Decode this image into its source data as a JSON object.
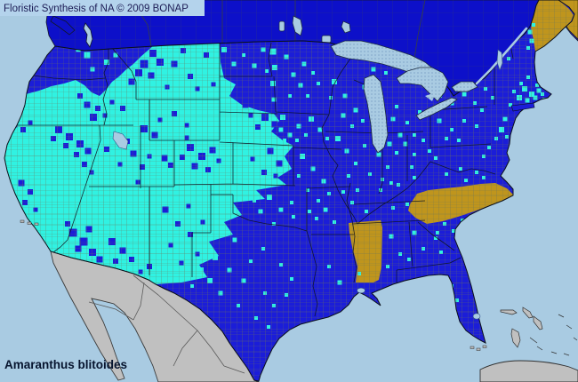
{
  "header": {
    "title": "Floristic Synthesis of NA © 2009 BONAP"
  },
  "footer": {
    "species": "Amaranthus blitoides"
  },
  "colors": {
    "ocean": "#a9cbe2",
    "water": "#a9cbe2",
    "title_bar_bg": "#b4d3ec",
    "title_text": "#1c1c55",
    "species_text": "#06142e",
    "canada_blue": "#0d10c9",
    "us_state_blue": "#1b1dd8",
    "county_cyan": "#30f2e2",
    "gold_absent": "#bf951d",
    "foreign_gray": "#c0c0c0",
    "county_line": "#6d7557",
    "state_line": "#101420",
    "outline": "#0a0f1a",
    "lake_dot": "#6f93bb"
  },
  "map": {
    "county_squares_cyan": [
      [
        98,
        62,
        7
      ],
      [
        120,
        70,
        6
      ],
      [
        104,
        78,
        5
      ],
      [
        88,
        56,
        5
      ],
      [
        130,
        62,
        5
      ],
      [
        128,
        96,
        5
      ],
      [
        252,
        56,
        6
      ],
      [
        263,
        72,
        5
      ],
      [
        286,
        74,
        5
      ],
      [
        296,
        56,
        5
      ],
      [
        274,
        62,
        4
      ],
      [
        300,
        80,
        4
      ],
      [
        307,
        58,
        7
      ],
      [
        309,
        76,
        6
      ],
      [
        307,
        94,
        6
      ],
      [
        308,
        112,
        5
      ],
      [
        322,
        64,
        5
      ],
      [
        330,
        84,
        5
      ],
      [
        342,
        72,
        5
      ],
      [
        338,
        96,
        5
      ],
      [
        352,
        82,
        4
      ],
      [
        326,
        108,
        4
      ],
      [
        346,
        108,
        4
      ],
      [
        358,
        94,
        4
      ],
      [
        376,
        92,
        6
      ],
      [
        388,
        108,
        5
      ],
      [
        400,
        124,
        5
      ],
      [
        410,
        98,
        5
      ],
      [
        386,
        130,
        5
      ],
      [
        396,
        142,
        4
      ],
      [
        372,
        110,
        4
      ],
      [
        408,
        136,
        4
      ],
      [
        420,
        78,
        5
      ],
      [
        434,
        82,
        4
      ],
      [
        428,
        118,
        5
      ],
      [
        442,
        134,
        5
      ],
      [
        450,
        152,
        5
      ],
      [
        438,
        162,
        5
      ],
      [
        458,
        138,
        4
      ],
      [
        466,
        152,
        4
      ],
      [
        472,
        126,
        4
      ],
      [
        446,
        120,
        4
      ],
      [
        318,
        132,
        6
      ],
      [
        316,
        146,
        5
      ],
      [
        326,
        152,
        5
      ],
      [
        334,
        158,
        4
      ],
      [
        320,
        158,
        4
      ],
      [
        350,
        134,
        6
      ],
      [
        360,
        146,
        5
      ],
      [
        368,
        156,
        4
      ],
      [
        344,
        152,
        4
      ],
      [
        336,
        142,
        5
      ],
      [
        340,
        176,
        6
      ],
      [
        352,
        190,
        5
      ],
      [
        364,
        204,
        5
      ],
      [
        346,
        214,
        4
      ],
      [
        358,
        226,
        4
      ],
      [
        336,
        198,
        4
      ],
      [
        370,
        218,
        4
      ],
      [
        348,
        238,
        4
      ],
      [
        380,
        156,
        6
      ],
      [
        390,
        170,
        5
      ],
      [
        400,
        184,
        4
      ],
      [
        410,
        164,
        4
      ],
      [
        392,
        198,
        4
      ],
      [
        402,
        214,
        4
      ],
      [
        386,
        216,
        4
      ],
      [
        416,
        196,
        4
      ],
      [
        396,
        228,
        4
      ],
      [
        426,
        174,
        5
      ],
      [
        436,
        188,
        4
      ],
      [
        446,
        172,
        4
      ],
      [
        430,
        202,
        4
      ],
      [
        440,
        206,
        4
      ],
      [
        456,
        162,
        5
      ],
      [
        466,
        174,
        4
      ],
      [
        476,
        158,
        4
      ],
      [
        463,
        188,
        4
      ],
      [
        483,
        170,
        4
      ],
      [
        428,
        214,
        4
      ],
      [
        448,
        208,
        4
      ],
      [
        466,
        200,
        4
      ],
      [
        412,
        238,
        4
      ],
      [
        442,
        234,
        4
      ],
      [
        458,
        230,
        4
      ],
      [
        366,
        236,
        5
      ],
      [
        376,
        250,
        4
      ],
      [
        356,
        246,
        4
      ],
      [
        382,
        318,
        5
      ],
      [
        404,
        308,
        4
      ],
      [
        370,
        300,
        4
      ],
      [
        303,
        222,
        6
      ],
      [
        316,
        236,
        5
      ],
      [
        293,
        238,
        5
      ],
      [
        308,
        252,
        4
      ],
      [
        328,
        228,
        4
      ],
      [
        286,
        226,
        4
      ],
      [
        330,
        244,
        4
      ],
      [
        250,
        256,
        6
      ],
      [
        264,
        270,
        5
      ],
      [
        242,
        290,
        6
      ],
      [
        258,
        304,
        5
      ],
      [
        274,
        316,
        5
      ],
      [
        236,
        316,
        6
      ],
      [
        226,
        304,
        6
      ],
      [
        248,
        330,
        5
      ],
      [
        282,
        294,
        4
      ],
      [
        296,
        280,
        4
      ],
      [
        268,
        344,
        4
      ],
      [
        298,
        330,
        4
      ],
      [
        316,
        298,
        4
      ],
      [
        328,
        314,
        4
      ],
      [
        288,
        358,
        4
      ],
      [
        308,
        344,
        4
      ],
      [
        198,
        314,
        5
      ],
      [
        208,
        300,
        5
      ],
      [
        188,
        308,
        4
      ],
      [
        216,
        322,
        4
      ],
      [
        302,
        368,
        4
      ],
      [
        322,
        332,
        4
      ],
      [
        440,
        266,
        5
      ],
      [
        450,
        286,
        4
      ],
      [
        436,
        300,
        4
      ],
      [
        466,
        262,
        5
      ],
      [
        476,
        280,
        4
      ],
      [
        490,
        268,
        4
      ],
      [
        460,
        292,
        4
      ],
      [
        496,
        284,
        4
      ],
      [
        514,
        338,
        4
      ],
      [
        508,
        322,
        4
      ],
      [
        500,
        252,
        4
      ],
      [
        510,
        260,
        4
      ],
      [
        520,
        248,
        4
      ],
      [
        492,
        262,
        4
      ],
      [
        502,
        196,
        4
      ],
      [
        518,
        190,
        4
      ],
      [
        536,
        194,
        4
      ],
      [
        524,
        203,
        4
      ],
      [
        544,
        200,
        4
      ],
      [
        490,
        178,
        4
      ],
      [
        550,
        166,
        4
      ],
      [
        558,
        156,
        4
      ],
      [
        544,
        176,
        4
      ],
      [
        494,
        136,
        5
      ],
      [
        508,
        146,
        4
      ],
      [
        522,
        136,
        4
      ],
      [
        536,
        142,
        4
      ],
      [
        502,
        156,
        4
      ],
      [
        516,
        158,
        4
      ],
      [
        508,
        116,
        5
      ],
      [
        522,
        106,
        5
      ],
      [
        534,
        116,
        4
      ],
      [
        546,
        100,
        4
      ],
      [
        554,
        110,
        4
      ],
      [
        542,
        124,
        4
      ],
      [
        530,
        92,
        4
      ],
      [
        495,
        108,
        4
      ],
      [
        568,
        134,
        5
      ],
      [
        564,
        146,
        6
      ],
      [
        570,
        154,
        4
      ],
      [
        590,
        100,
        6
      ],
      [
        598,
        106,
        6
      ],
      [
        606,
        102,
        5
      ],
      [
        584,
        110,
        6
      ],
      [
        593,
        113,
        5
      ],
      [
        602,
        110,
        5
      ],
      [
        610,
        106,
        4
      ],
      [
        586,
        94,
        4
      ],
      [
        594,
        87,
        4
      ],
      [
        578,
        103,
        4
      ],
      [
        574,
        118,
        4
      ],
      [
        580,
        121,
        4
      ],
      [
        604,
        96,
        4
      ],
      [
        612,
        112,
        4
      ],
      [
        596,
        36,
        5
      ],
      [
        598,
        46,
        5
      ],
      [
        594,
        54,
        4
      ],
      [
        600,
        28,
        4
      ],
      [
        572,
        66,
        4
      ],
      [
        578,
        121,
        3
      ],
      [
        586,
        119,
        3
      ]
    ],
    "county_squares_blue": [
      [
        150,
        62,
        10
      ],
      [
        162,
        72,
        9
      ],
      [
        172,
        60,
        8
      ],
      [
        156,
        82,
        8
      ],
      [
        170,
        85,
        7
      ],
      [
        180,
        70,
        8
      ],
      [
        148,
        92,
        7
      ],
      [
        196,
        72,
        7
      ],
      [
        214,
        86,
        6
      ],
      [
        232,
        62,
        6
      ],
      [
        222,
        100,
        5
      ],
      [
        188,
        98,
        5
      ],
      [
        206,
        57,
        6
      ],
      [
        240,
        95,
        5
      ],
      [
        270,
        96,
        9
      ],
      [
        282,
        106,
        9
      ],
      [
        294,
        114,
        8
      ],
      [
        276,
        118,
        7
      ],
      [
        290,
        94,
        7
      ],
      [
        302,
        104,
        7
      ],
      [
        265,
        108,
        6
      ],
      [
        298,
        132,
        8
      ],
      [
        309,
        140,
        7
      ],
      [
        290,
        143,
        6
      ],
      [
        282,
        130,
        5
      ],
      [
        304,
        170,
        7
      ],
      [
        314,
        184,
        7
      ],
      [
        297,
        194,
        6
      ],
      [
        284,
        179,
        5
      ],
      [
        310,
        198,
        5
      ],
      [
        214,
        166,
        8
      ],
      [
        227,
        176,
        8
      ],
      [
        239,
        169,
        7
      ],
      [
        219,
        187,
        7
      ],
      [
        234,
        191,
        6
      ],
      [
        205,
        177,
        6
      ],
      [
        246,
        181,
        5
      ],
      [
        210,
        155,
        5
      ],
      [
        196,
        128,
        6
      ],
      [
        210,
        141,
        5
      ],
      [
        180,
        135,
        5
      ],
      [
        150,
        173,
        7
      ],
      [
        160,
        188,
        6
      ],
      [
        143,
        159,
        6
      ],
      [
        168,
        176,
        5
      ],
      [
        155,
        205,
        5
      ],
      [
        162,
        145,
        8
      ],
      [
        174,
        152,
        7
      ],
      [
        120,
        168,
        6
      ],
      [
        135,
        185,
        5
      ],
      [
        185,
        178,
        7
      ],
      [
        192,
        186,
        6
      ],
      [
        138,
        122,
        6
      ],
      [
        126,
        115,
        5
      ],
      [
        66,
        146,
        8
      ],
      [
        78,
        154,
        8
      ],
      [
        90,
        162,
        8
      ],
      [
        99,
        170,
        7
      ],
      [
        86,
        174,
        6
      ],
      [
        74,
        164,
        6
      ],
      [
        60,
        156,
        6
      ],
      [
        95,
        185,
        6
      ],
      [
        103,
        194,
        5
      ],
      [
        6,
        134,
        8
      ],
      [
        16,
        140,
        7
      ],
      [
        26,
        146,
        6
      ],
      [
        10,
        148,
        6
      ],
      [
        34,
        138,
        5
      ],
      [
        24,
        206,
        7
      ],
      [
        34,
        216,
        6
      ],
      [
        28,
        228,
        6
      ],
      [
        40,
        236,
        5
      ],
      [
        82,
        262,
        9
      ],
      [
        94,
        272,
        9
      ],
      [
        104,
        284,
        8
      ],
      [
        88,
        280,
        7
      ],
      [
        100,
        258,
        7
      ],
      [
        112,
        292,
        7
      ],
      [
        76,
        252,
        6
      ],
      [
        126,
        272,
        8
      ],
      [
        138,
        282,
        7
      ],
      [
        130,
        294,
        6
      ],
      [
        148,
        292,
        6
      ],
      [
        120,
        302,
        5
      ],
      [
        168,
        300,
        6
      ],
      [
        158,
        306,
        5
      ],
      [
        186,
        236,
        7
      ],
      [
        200,
        252,
        6
      ],
      [
        214,
        264,
        6
      ],
      [
        192,
        276,
        5
      ],
      [
        212,
        232,
        5
      ],
      [
        228,
        250,
        5
      ],
      [
        204,
        296,
        5
      ],
      [
        222,
        286,
        5
      ],
      [
        98,
        118,
        7
      ],
      [
        110,
        122,
        6
      ],
      [
        90,
        108,
        6
      ],
      [
        105,
        132,
        8
      ],
      [
        118,
        130,
        5
      ]
    ]
  }
}
